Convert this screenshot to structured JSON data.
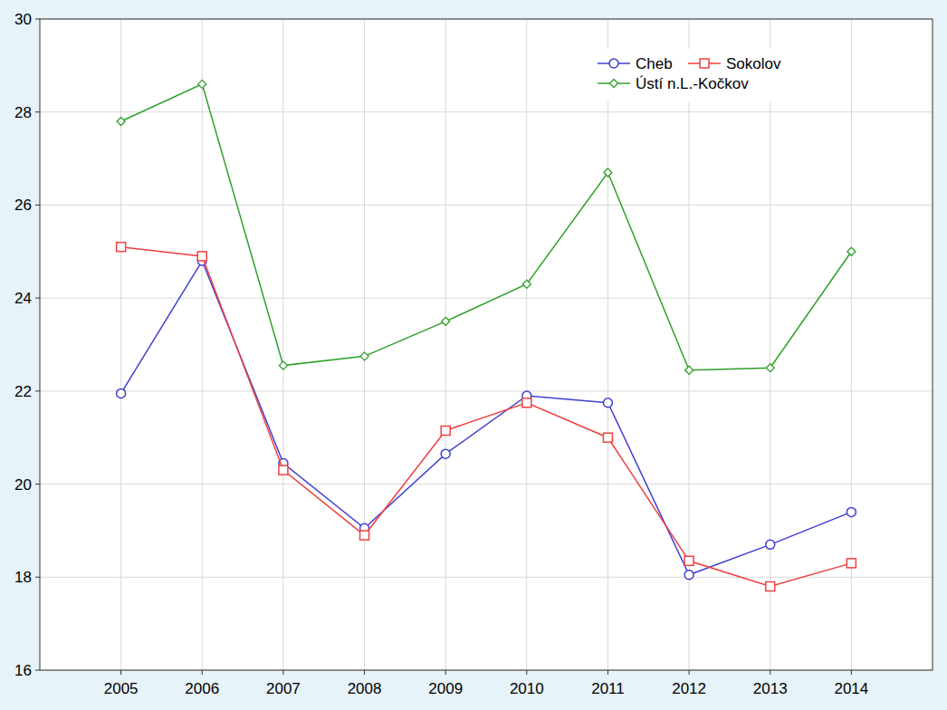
{
  "chart_data": {
    "type": "line",
    "categories": [
      "2005",
      "2006",
      "2007",
      "2008",
      "2009",
      "2010",
      "2011",
      "2012",
      "2013",
      "2014"
    ],
    "series": [
      {
        "name": "Cheb",
        "color": "#3f3fd0",
        "marker": "circle",
        "values": [
          21.95,
          24.8,
          20.45,
          19.05,
          20.65,
          21.9,
          21.75,
          18.05,
          18.7,
          19.4
        ]
      },
      {
        "name": "Sokolov",
        "color": "#f04040",
        "marker": "square",
        "values": [
          25.1,
          24.9,
          20.3,
          18.9,
          21.15,
          21.75,
          21.0,
          18.35,
          17.8,
          18.3
        ]
      },
      {
        "name": "Ústí n.L.-Kočkov",
        "color": "#2ea02a",
        "marker": "diamond",
        "values": [
          27.8,
          28.6,
          22.55,
          22.75,
          23.5,
          24.3,
          26.7,
          22.45,
          22.5,
          25.0
        ]
      }
    ],
    "ylim": [
      16,
      30
    ],
    "yticks": [
      16,
      18,
      20,
      22,
      24,
      26,
      28,
      30
    ],
    "grid": true,
    "legend": "top-right"
  }
}
